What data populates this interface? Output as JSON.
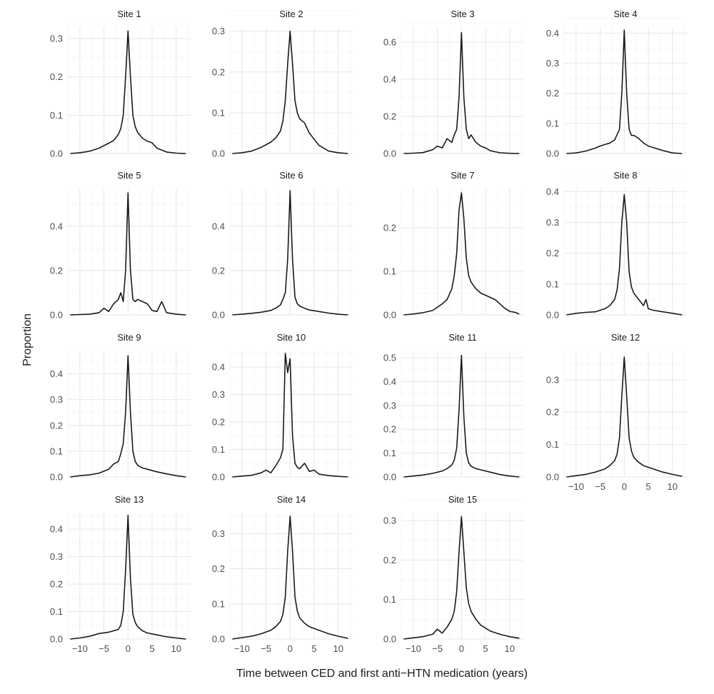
{
  "chart_data": {
    "type": "line",
    "facet_layout": "4 columns x 4 rows, fixed x-scale, free y-scale",
    "xlabel": "Time between CED and first anti−HTN medication (years)",
    "ylabel": "Proportion",
    "xlim": [
      -12.5,
      13
    ],
    "x_ticks": [
      -10,
      -5,
      0,
      5,
      10
    ],
    "x_tick_labels": [
      "−10",
      "−5",
      "0",
      "5",
      "10"
    ],
    "grid": true,
    "panels": [
      {
        "title": "Site 1",
        "ylim": [
          0,
          0.33
        ],
        "y_ticks": [
          0,
          0.1,
          0.2,
          0.3
        ],
        "y_tick_labels": [
          "0.0",
          "0.1",
          "0.2",
          "0.3"
        ],
        "show_x_axis": false,
        "x": [
          -12,
          -10,
          -8,
          -6,
          -4,
          -3,
          -2,
          -1.5,
          -1,
          -0.5,
          0,
          0.5,
          1,
          1.5,
          2,
          3,
          4,
          5,
          6,
          8,
          10,
          12
        ],
        "y": [
          0,
          0.002,
          0.006,
          0.014,
          0.027,
          0.034,
          0.05,
          0.065,
          0.1,
          0.2,
          0.32,
          0.2,
          0.1,
          0.07,
          0.055,
          0.04,
          0.032,
          0.028,
          0.014,
          0.004,
          0.001,
          0
        ]
      },
      {
        "title": "Site 2",
        "ylim": [
          0,
          0.31
        ],
        "y_ticks": [
          0,
          0.1,
          0.2,
          0.3
        ],
        "y_tick_labels": [
          "0.0",
          "0.1",
          "0.2",
          "0.3"
        ],
        "show_x_axis": false,
        "x": [
          -12,
          -10,
          -8,
          -6,
          -4,
          -3,
          -2,
          -1.5,
          -1,
          -0.5,
          0,
          0.5,
          1,
          1.5,
          2,
          3,
          4,
          5,
          6,
          8,
          10,
          12
        ],
        "y": [
          0,
          0.002,
          0.006,
          0.015,
          0.028,
          0.038,
          0.055,
          0.08,
          0.13,
          0.22,
          0.3,
          0.22,
          0.13,
          0.1,
          0.085,
          0.075,
          0.05,
          0.035,
          0.02,
          0.006,
          0.002,
          0
        ]
      },
      {
        "title": "Site 3",
        "ylim": [
          0,
          0.68
        ],
        "y_ticks": [
          0,
          0.2,
          0.4,
          0.6
        ],
        "y_tick_labels": [
          "0.0",
          "0.2",
          "0.4",
          "0.6"
        ],
        "show_x_axis": false,
        "x": [
          -12,
          -10,
          -8,
          -6,
          -5,
          -4,
          -3,
          -2,
          -1.5,
          -1,
          -0.5,
          0,
          0.5,
          1,
          1.5,
          2,
          3,
          4,
          5,
          6,
          8,
          10,
          12
        ],
        "y": [
          0,
          0.002,
          0.005,
          0.02,
          0.04,
          0.03,
          0.08,
          0.06,
          0.1,
          0.13,
          0.3,
          0.65,
          0.3,
          0.13,
          0.08,
          0.1,
          0.06,
          0.04,
          0.03,
          0.015,
          0.004,
          0.001,
          0
        ]
      },
      {
        "title": "Site 4",
        "ylim": [
          0,
          0.42
        ],
        "y_ticks": [
          0,
          0.1,
          0.2,
          0.3,
          0.4
        ],
        "y_tick_labels": [
          "0.0",
          "0.1",
          "0.2",
          "0.3",
          "0.4"
        ],
        "show_x_axis": false,
        "x": [
          -12,
          -10,
          -8,
          -6,
          -5,
          -4,
          -3,
          -2,
          -1,
          -0.5,
          0,
          0.5,
          1,
          1.5,
          2,
          3,
          4,
          5,
          6,
          8,
          10,
          12
        ],
        "y": [
          0,
          0.002,
          0.008,
          0.018,
          0.025,
          0.03,
          0.035,
          0.045,
          0.08,
          0.2,
          0.41,
          0.2,
          0.08,
          0.06,
          0.06,
          0.05,
          0.035,
          0.025,
          0.02,
          0.01,
          0.002,
          0
        ]
      },
      {
        "title": "Site 5",
        "ylim": [
          0,
          0.57
        ],
        "y_ticks": [
          0,
          0.2,
          0.4
        ],
        "y_tick_labels": [
          "0.0",
          "0.2",
          "0.4"
        ],
        "show_x_axis": false,
        "x": [
          -12,
          -8,
          -6,
          -5,
          -4,
          -3,
          -2,
          -1.5,
          -1,
          -0.5,
          0,
          0.5,
          1,
          1.5,
          2,
          3,
          4,
          5,
          6,
          7,
          8,
          10,
          12
        ],
        "y": [
          0,
          0.003,
          0.01,
          0.03,
          0.015,
          0.05,
          0.07,
          0.1,
          0.06,
          0.2,
          0.55,
          0.2,
          0.07,
          0.06,
          0.07,
          0.06,
          0.05,
          0.02,
          0.015,
          0.06,
          0.01,
          0.003,
          0
        ]
      },
      {
        "title": "Site 6",
        "ylim": [
          0,
          0.57
        ],
        "y_ticks": [
          0,
          0.2,
          0.4
        ],
        "y_tick_labels": [
          "0.0",
          "0.2",
          "0.4"
        ],
        "show_x_axis": false,
        "x": [
          -12,
          -10,
          -8,
          -6,
          -4,
          -3,
          -2,
          -1.5,
          -1,
          -0.5,
          0,
          0.5,
          1,
          1.5,
          2,
          3,
          4,
          6,
          8,
          10,
          12
        ],
        "y": [
          0,
          0.003,
          0.007,
          0.012,
          0.02,
          0.03,
          0.045,
          0.07,
          0.1,
          0.25,
          0.56,
          0.25,
          0.08,
          0.05,
          0.04,
          0.03,
          0.022,
          0.015,
          0.008,
          0.003,
          0
        ]
      },
      {
        "title": "Site 7",
        "ylim": [
          0,
          0.29
        ],
        "y_ticks": [
          0,
          0.1,
          0.2
        ],
        "y_tick_labels": [
          "0.0",
          "0.1",
          "0.2"
        ],
        "show_x_axis": false,
        "x": [
          -12,
          -10,
          -8,
          -6,
          -4,
          -3,
          -2,
          -1.5,
          -1,
          -0.5,
          0,
          0.5,
          1,
          1.5,
          2,
          3,
          4,
          5,
          6,
          7,
          8,
          9,
          10,
          11,
          12
        ],
        "y": [
          0,
          0.002,
          0.005,
          0.01,
          0.025,
          0.035,
          0.06,
          0.09,
          0.14,
          0.24,
          0.28,
          0.22,
          0.13,
          0.09,
          0.075,
          0.06,
          0.05,
          0.045,
          0.04,
          0.035,
          0.025,
          0.015,
          0.008,
          0.006,
          0.002
        ]
      },
      {
        "title": "Site 8",
        "ylim": [
          0,
          0.41
        ],
        "y_ticks": [
          0,
          0.1,
          0.2,
          0.3,
          0.4
        ],
        "y_tick_labels": [
          "0.0",
          "0.1",
          "0.2",
          "0.3",
          "0.4"
        ],
        "show_x_axis": false,
        "x": [
          -12,
          -10,
          -8,
          -6,
          -4,
          -3,
          -2,
          -1.5,
          -1,
          -0.5,
          0,
          0.5,
          1,
          1.5,
          2,
          3,
          4,
          4.5,
          5,
          6,
          8,
          10,
          12
        ],
        "y": [
          0,
          0.005,
          0.008,
          0.01,
          0.02,
          0.03,
          0.05,
          0.08,
          0.15,
          0.3,
          0.39,
          0.3,
          0.14,
          0.09,
          0.07,
          0.05,
          0.03,
          0.05,
          0.02,
          0.015,
          0.01,
          0.005,
          0
        ]
      },
      {
        "title": "Site 9",
        "ylim": [
          0,
          0.49
        ],
        "y_ticks": [
          0,
          0.1,
          0.2,
          0.3,
          0.4
        ],
        "y_tick_labels": [
          "0.0",
          "0.1",
          "0.2",
          "0.3",
          "0.4"
        ],
        "show_x_axis": false,
        "x": [
          -12,
          -10,
          -8,
          -6,
          -4,
          -3,
          -2,
          -1.5,
          -1,
          -0.5,
          0,
          0.5,
          1,
          1.5,
          2,
          3,
          4,
          6,
          8,
          10,
          12
        ],
        "y": [
          0,
          0.005,
          0.008,
          0.015,
          0.03,
          0.05,
          0.06,
          0.09,
          0.13,
          0.25,
          0.47,
          0.25,
          0.1,
          0.06,
          0.045,
          0.035,
          0.03,
          0.02,
          0.012,
          0.005,
          0
        ]
      },
      {
        "title": "Site 10",
        "ylim": [
          0,
          0.46
        ],
        "y_ticks": [
          0,
          0.1,
          0.2,
          0.3,
          0.4
        ],
        "y_tick_labels": [
          "0.0",
          "0.1",
          "0.2",
          "0.3",
          "0.4"
        ],
        "show_x_axis": false,
        "x": [
          -12,
          -10,
          -8,
          -6,
          -5,
          -4,
          -3,
          -2,
          -1.5,
          -1,
          -0.5,
          0,
          0.5,
          1,
          1.5,
          2,
          3,
          4,
          5,
          6,
          8,
          10,
          12
        ],
        "y": [
          0,
          0.003,
          0.006,
          0.015,
          0.025,
          0.015,
          0.04,
          0.07,
          0.1,
          0.45,
          0.38,
          0.43,
          0.15,
          0.05,
          0.035,
          0.03,
          0.05,
          0.02,
          0.025,
          0.01,
          0.005,
          0.002,
          0
        ]
      },
      {
        "title": "Site 11",
        "ylim": [
          0,
          0.53
        ],
        "y_ticks": [
          0,
          0.1,
          0.2,
          0.3,
          0.4,
          0.5
        ],
        "y_tick_labels": [
          "0.0",
          "0.1",
          "0.2",
          "0.3",
          "0.4",
          "0.5"
        ],
        "show_x_axis": false,
        "x": [
          -12,
          -10,
          -8,
          -6,
          -4,
          -3,
          -2,
          -1.5,
          -1,
          -0.5,
          0,
          0.5,
          1,
          1.5,
          2,
          3,
          4,
          6,
          8,
          10,
          12
        ],
        "y": [
          0,
          0.004,
          0.008,
          0.015,
          0.025,
          0.035,
          0.05,
          0.07,
          0.12,
          0.28,
          0.51,
          0.25,
          0.1,
          0.06,
          0.045,
          0.035,
          0.03,
          0.02,
          0.01,
          0.004,
          0
        ]
      },
      {
        "title": "Site 12",
        "ylim": [
          0,
          0.39
        ],
        "y_ticks": [
          0,
          0.1,
          0.2,
          0.3
        ],
        "y_tick_labels": [
          "0.0",
          "0.1",
          "0.2",
          "0.3"
        ],
        "show_x_axis": true,
        "x": [
          -12,
          -10,
          -8,
          -6,
          -4,
          -3,
          -2,
          -1.5,
          -1,
          -0.5,
          0,
          0.5,
          1,
          1.5,
          2,
          3,
          4,
          6,
          8,
          10,
          12
        ],
        "y": [
          0,
          0.004,
          0.008,
          0.015,
          0.025,
          0.035,
          0.05,
          0.07,
          0.12,
          0.25,
          0.37,
          0.25,
          0.12,
          0.08,
          0.06,
          0.045,
          0.035,
          0.025,
          0.015,
          0.008,
          0.002
        ]
      },
      {
        "title": "Site 13",
        "ylim": [
          0,
          0.46
        ],
        "y_ticks": [
          0,
          0.1,
          0.2,
          0.3,
          0.4
        ],
        "y_tick_labels": [
          "0.0",
          "0.1",
          "0.2",
          "0.3",
          "0.4"
        ],
        "show_x_axis": true,
        "x": [
          -12,
          -10,
          -8,
          -6,
          -4,
          -3,
          -2,
          -1.5,
          -1,
          -0.5,
          0,
          0.5,
          1,
          1.5,
          2,
          3,
          4,
          6,
          8,
          10,
          12
        ],
        "y": [
          0,
          0.004,
          0.01,
          0.02,
          0.025,
          0.03,
          0.035,
          0.05,
          0.1,
          0.25,
          0.45,
          0.22,
          0.09,
          0.06,
          0.045,
          0.03,
          0.022,
          0.015,
          0.008,
          0.004,
          0
        ]
      },
      {
        "title": "Site 14",
        "ylim": [
          0,
          0.36
        ],
        "y_ticks": [
          0,
          0.1,
          0.2,
          0.3
        ],
        "y_tick_labels": [
          "0.0",
          "0.1",
          "0.2",
          "0.3"
        ],
        "show_x_axis": true,
        "x": [
          -12,
          -10,
          -8,
          -6,
          -4,
          -3,
          -2,
          -1.5,
          -1,
          -0.5,
          0,
          0.5,
          1,
          1.5,
          2,
          3,
          4,
          6,
          8,
          10,
          12
        ],
        "y": [
          0,
          0.004,
          0.008,
          0.015,
          0.025,
          0.035,
          0.05,
          0.07,
          0.12,
          0.25,
          0.35,
          0.25,
          0.12,
          0.08,
          0.06,
          0.045,
          0.035,
          0.025,
          0.015,
          0.008,
          0.002
        ]
      },
      {
        "title": "Site 15",
        "ylim": [
          0,
          0.32
        ],
        "y_ticks": [
          0,
          0.1,
          0.2,
          0.3
        ],
        "y_tick_labels": [
          "0.0",
          "0.1",
          "0.2",
          "0.3"
        ],
        "show_x_axis": true,
        "x": [
          -12,
          -10,
          -8,
          -6,
          -5,
          -4,
          -3,
          -2,
          -1.5,
          -1,
          -0.5,
          0,
          0.5,
          1,
          1.5,
          2,
          3,
          4,
          6,
          8,
          10,
          12
        ],
        "y": [
          0,
          0.003,
          0.006,
          0.012,
          0.025,
          0.015,
          0.03,
          0.05,
          0.07,
          0.12,
          0.22,
          0.31,
          0.22,
          0.13,
          0.09,
          0.07,
          0.05,
          0.035,
          0.02,
          0.012,
          0.006,
          0.002
        ]
      }
    ]
  }
}
